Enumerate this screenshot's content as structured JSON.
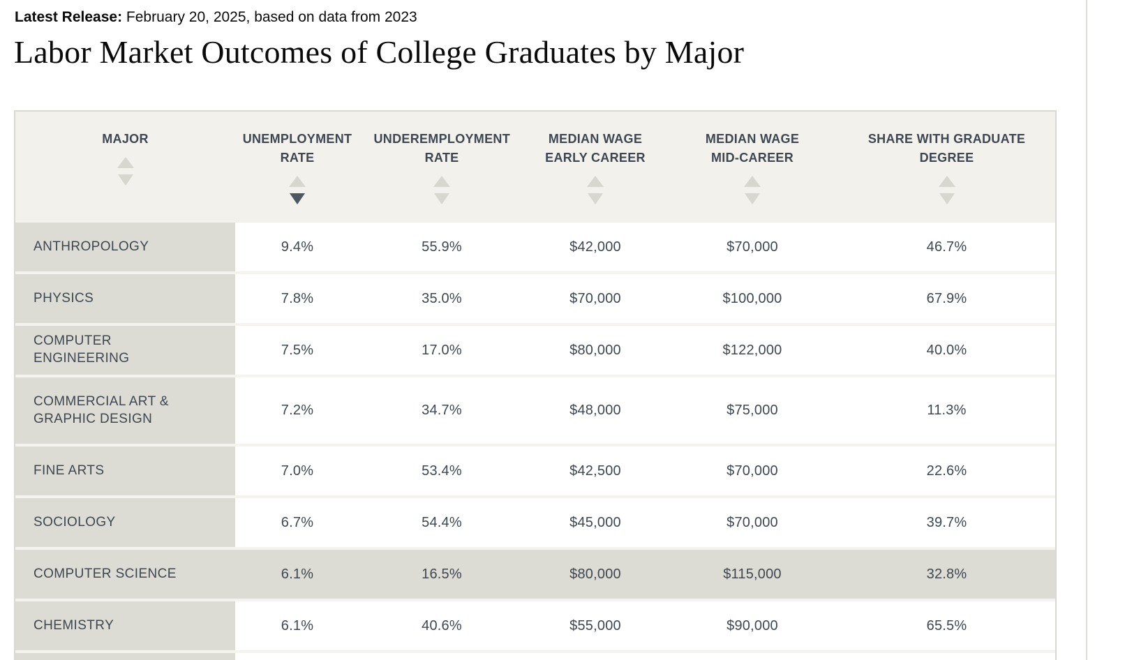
{
  "header": {
    "release_label": "Latest Release:",
    "release_text": "February 20, 2025, based on data from 2023",
    "title": "Labor Market Outcomes of College Graduates by Major"
  },
  "table": {
    "columns": [
      {
        "id": "major",
        "label": "MAJOR",
        "sorted": "none"
      },
      {
        "id": "unemployment_rate",
        "label": "UNEMPLOYMENT RATE",
        "sorted": "desc"
      },
      {
        "id": "underemployment_rate",
        "label": "UNDEREMPLOYMENT RATE",
        "sorted": "none"
      },
      {
        "id": "median_wage_early_career",
        "label": "MEDIAN WAGE EARLY CAREER",
        "sorted": "none"
      },
      {
        "id": "median_wage_mid_career",
        "label": "MEDIAN WAGE MID-CAREER",
        "sorted": "none"
      },
      {
        "id": "share_with_graduate_degree",
        "label": "SHARE WITH GRADUATE DEGREE",
        "sorted": "none"
      }
    ],
    "rows": [
      {
        "major": "ANTHROPOLOGY",
        "unemployment_rate": "9.4%",
        "underemployment_rate": "55.9%",
        "median_wage_early_career": "$42,000",
        "median_wage_mid_career": "$70,000",
        "share_with_graduate_degree": "46.7%",
        "highlighted": false
      },
      {
        "major": "PHYSICS",
        "unemployment_rate": "7.8%",
        "underemployment_rate": "35.0%",
        "median_wage_early_career": "$70,000",
        "median_wage_mid_career": "$100,000",
        "share_with_graduate_degree": "67.9%",
        "highlighted": false
      },
      {
        "major": "COMPUTER ENGINEERING",
        "unemployment_rate": "7.5%",
        "underemployment_rate": "17.0%",
        "median_wage_early_career": "$80,000",
        "median_wage_mid_career": "$122,000",
        "share_with_graduate_degree": "40.0%",
        "highlighted": false
      },
      {
        "major": "COMMERCIAL ART & GRAPHIC DESIGN",
        "unemployment_rate": "7.2%",
        "underemployment_rate": "34.7%",
        "median_wage_early_career": "$48,000",
        "median_wage_mid_career": "$75,000",
        "share_with_graduate_degree": "11.3%",
        "highlighted": false
      },
      {
        "major": "FINE ARTS",
        "unemployment_rate": "7.0%",
        "underemployment_rate": "53.4%",
        "median_wage_early_career": "$42,500",
        "median_wage_mid_career": "$70,000",
        "share_with_graduate_degree": "22.6%",
        "highlighted": false
      },
      {
        "major": "SOCIOLOGY",
        "unemployment_rate": "6.7%",
        "underemployment_rate": "54.4%",
        "median_wage_early_career": "$45,000",
        "median_wage_mid_career": "$70,000",
        "share_with_graduate_degree": "39.7%",
        "highlighted": false
      },
      {
        "major": "COMPUTER SCIENCE",
        "unemployment_rate": "6.1%",
        "underemployment_rate": "16.5%",
        "median_wage_early_career": "$80,000",
        "median_wage_mid_career": "$115,000",
        "share_with_graduate_degree": "32.8%",
        "highlighted": true
      },
      {
        "major": "CHEMISTRY",
        "unemployment_rate": "6.1%",
        "underemployment_rate": "40.6%",
        "median_wage_early_career": "$55,000",
        "median_wage_mid_career": "$90,000",
        "share_with_graduate_degree": "65.5%",
        "highlighted": false
      }
    ]
  },
  "colors": {
    "header_background": "#f2f1ec",
    "major_column_background": "#dcdbd4",
    "highlight_row_background": "#dcdbd4",
    "row_divider": "#f4f3ee",
    "table_border": "#d9d8d2",
    "text": "#3e4751",
    "sort_arrow_inactive": "#d7d6cf",
    "sort_arrow_active": "#4f5861"
  }
}
